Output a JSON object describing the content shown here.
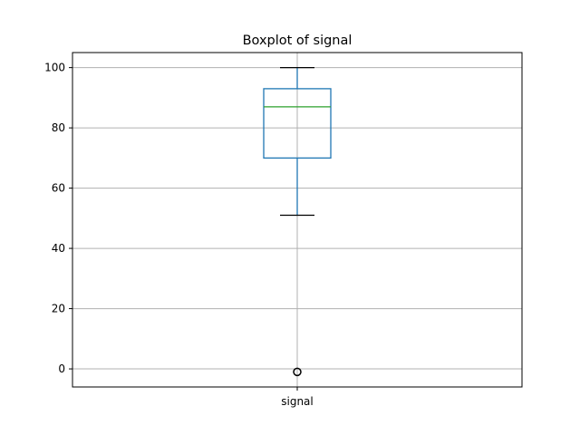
{
  "chart_data": {
    "type": "box",
    "title": "Boxplot of signal",
    "xlabel": "",
    "ylabel": "",
    "categories": [
      "signal"
    ],
    "series": [
      {
        "whisker_low": 51,
        "q1": 70,
        "median": 87,
        "q3": 93,
        "whisker_high": 100,
        "outliers": [
          -1
        ]
      }
    ],
    "ylim": [
      -6,
      105
    ],
    "yticks": [
      0,
      20,
      40,
      60,
      80,
      100
    ],
    "grid": true,
    "colors": {
      "box": "#1f77b4",
      "median": "#2ca02c",
      "whisker_cap": "#000000",
      "grid": "#b0b0b0",
      "outlier": "#000000"
    }
  }
}
